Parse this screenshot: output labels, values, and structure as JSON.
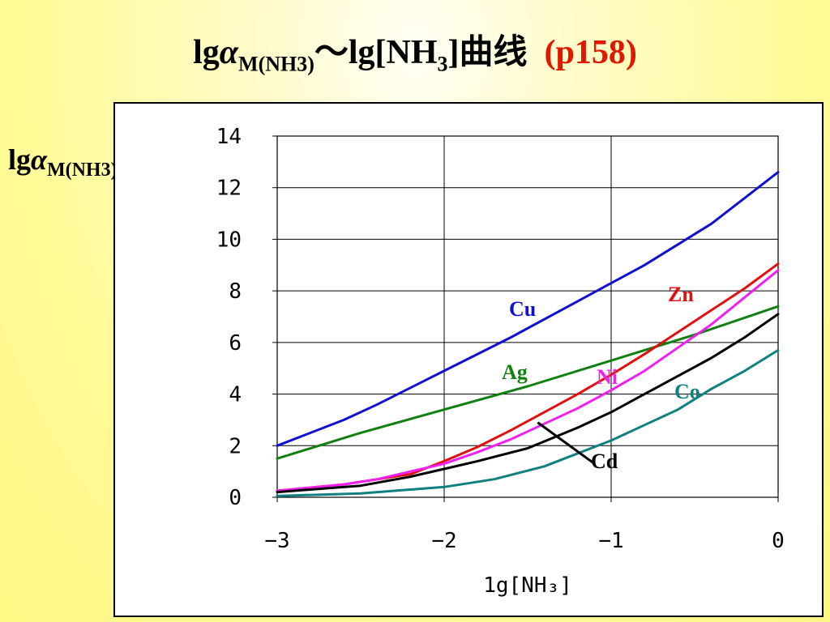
{
  "title": {
    "prefix": "lg",
    "alpha": "α",
    "sub": "M(NH3)",
    "middle": "～lg[NH",
    "sub2": "3",
    "suffix": "]曲线",
    "ref": "(p158)"
  },
  "colors": {
    "ref": "#e01800",
    "Cu": "#1010d0",
    "Zn": "#e01010",
    "Ag": "#108010",
    "Ni": "#f020f0",
    "Cd": "#000000",
    "Co": "#108080"
  },
  "chart_data": {
    "type": "line",
    "ylabel": {
      "prefix": "lg",
      "alpha": "α",
      "sub": "M(NH3)"
    },
    "xlabel": "1g[NH₃]",
    "xlim": [
      -3,
      0
    ],
    "ylim": [
      0,
      14
    ],
    "xticks": [
      -3,
      -2,
      -1,
      0
    ],
    "xtick_labels": [
      "−3",
      "−2",
      "−1",
      "0"
    ],
    "yticks": [
      0,
      2,
      4,
      6,
      8,
      10,
      12,
      14
    ],
    "grid": true,
    "series": [
      {
        "name": "Cu",
        "color": "#1010d0",
        "x": [
          -3,
          -2.6,
          -2.4,
          -2.0,
          -1.6,
          -1.2,
          -0.8,
          -0.4,
          0
        ],
        "y": [
          2.0,
          3.0,
          3.6,
          4.9,
          6.2,
          7.6,
          9.0,
          10.6,
          12.6
        ]
      },
      {
        "name": "Ag",
        "color": "#108010",
        "x": [
          -3,
          -2.5,
          -2.0,
          -1.5,
          -1.0,
          -0.5,
          0
        ],
        "y": [
          1.5,
          2.5,
          3.4,
          4.3,
          5.3,
          6.3,
          7.4
        ]
      },
      {
        "name": "Zn",
        "color": "#e01010",
        "x": [
          -3,
          -2.6,
          -2.2,
          -2.0,
          -1.8,
          -1.6,
          -1.4,
          -1.2,
          -1.0,
          -0.8,
          -0.6,
          -0.4,
          -0.2,
          0
        ],
        "y": [
          0.25,
          0.5,
          0.9,
          1.4,
          1.95,
          2.6,
          3.3,
          4.0,
          4.75,
          5.55,
          6.4,
          7.25,
          8.1,
          9.05
        ]
      },
      {
        "name": "Ni",
        "color": "#f020f0",
        "x": [
          -3,
          -2.6,
          -2.4,
          -2.2,
          -2.0,
          -1.8,
          -1.6,
          -1.4,
          -1.2,
          -1.0,
          -0.8,
          -0.6,
          -0.4,
          -0.2,
          0
        ],
        "y": [
          0.25,
          0.5,
          0.7,
          1.0,
          1.3,
          1.75,
          2.25,
          2.85,
          3.45,
          4.15,
          4.9,
          5.8,
          6.7,
          7.75,
          8.8
        ]
      },
      {
        "name": "Cd",
        "color": "#000000",
        "x": [
          -3,
          -2.5,
          -2.2,
          -2.0,
          -1.8,
          -1.5,
          -1.2,
          -1.0,
          -0.8,
          -0.6,
          -0.4,
          -0.2,
          0
        ],
        "y": [
          0.2,
          0.45,
          0.8,
          1.1,
          1.4,
          1.9,
          2.7,
          3.3,
          4.0,
          4.7,
          5.4,
          6.2,
          7.1
        ]
      },
      {
        "name": "Co",
        "color": "#108080",
        "x": [
          -3,
          -2.5,
          -2.0,
          -1.7,
          -1.4,
          -1.2,
          -1.0,
          -0.8,
          -0.6,
          -0.4,
          -0.2,
          0
        ],
        "y": [
          0.05,
          0.15,
          0.4,
          0.7,
          1.2,
          1.7,
          2.2,
          2.8,
          3.4,
          4.2,
          4.9,
          5.7
        ]
      }
    ],
    "annotations": [
      {
        "text": "Cu",
        "series": "Cu"
      },
      {
        "text": "Zn",
        "series": "Zn"
      },
      {
        "text": "Ag",
        "series": "Ag"
      },
      {
        "text": "Ni",
        "series": "Ni"
      },
      {
        "text": "Co",
        "series": "Co"
      },
      {
        "text": "Cd",
        "series": "Cd",
        "leader": {
          "from": [
            -1.44,
            2.9
          ],
          "to": [
            -1.1,
            1.3
          ]
        }
      }
    ]
  }
}
